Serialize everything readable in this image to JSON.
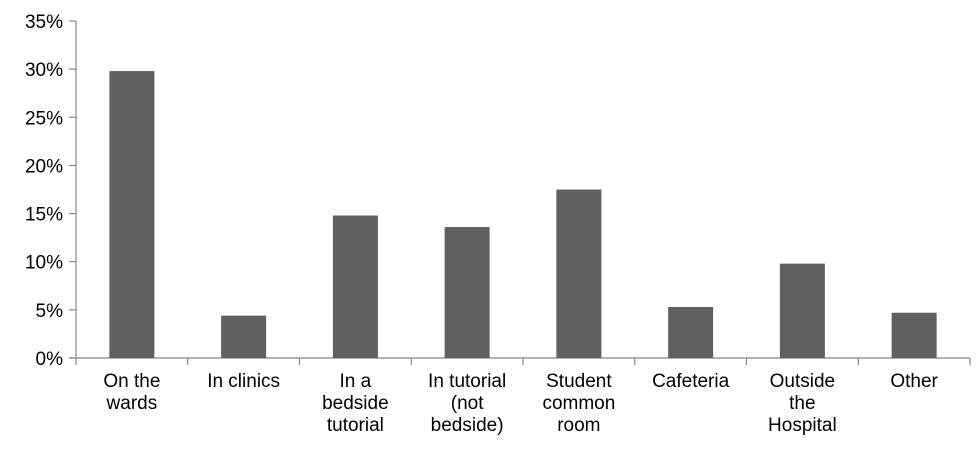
{
  "chart_data": {
    "type": "bar",
    "title": "",
    "xlabel": "",
    "ylabel": "",
    "categories": [
      [
        "On the",
        "wards"
      ],
      [
        "In clinics"
      ],
      [
        "In a",
        "bedside",
        "tutorial"
      ],
      [
        "In tutorial",
        "(not",
        "bedside)"
      ],
      [
        "Student",
        "common",
        "room"
      ],
      [
        "Cafeteria"
      ],
      [
        "Outside",
        "the",
        "Hospital"
      ],
      [
        "Other"
      ]
    ],
    "values": [
      29.8,
      4.4,
      14.8,
      13.6,
      17.5,
      5.3,
      9.8,
      4.7
    ],
    "ylim": [
      0,
      35
    ],
    "ytick_values": [
      0,
      5,
      10,
      15,
      20,
      25,
      30,
      35
    ],
    "ytick_labels": [
      "0%",
      "5%",
      "10%",
      "15%",
      "20%",
      "25%",
      "30%",
      "35%"
    ],
    "grid": false,
    "legend": "none",
    "bar_color": "#606060",
    "axis_color": "#888888"
  }
}
